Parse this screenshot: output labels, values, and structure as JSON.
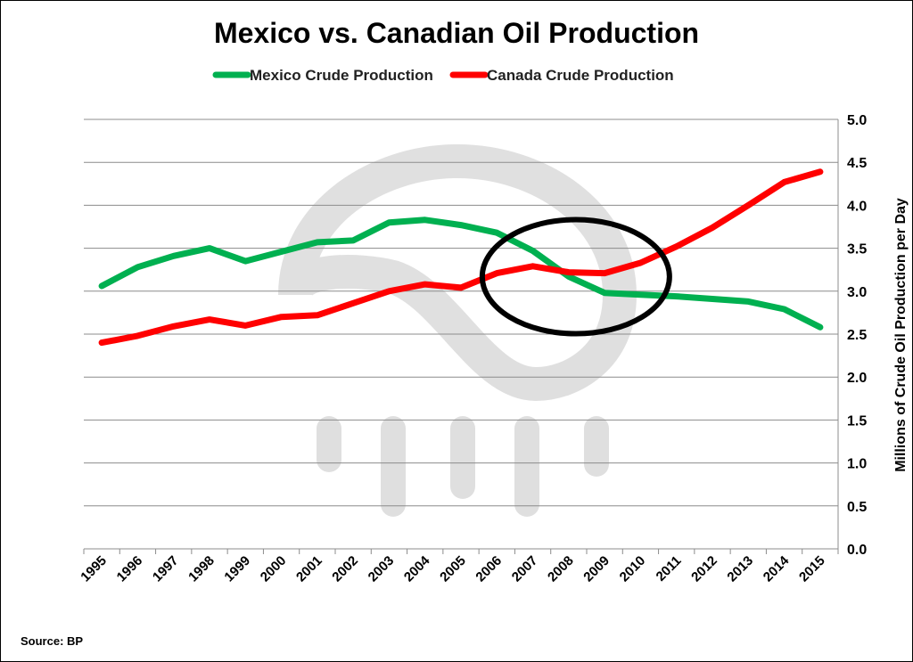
{
  "chart_data": {
    "type": "line",
    "title": "Mexico vs. Canadian Oil Production",
    "ylabel": "Millions of Crude Oil Production per Day",
    "xlabel": "",
    "ylim": [
      0,
      5
    ],
    "y_ticks": [
      "0.0",
      "0.5",
      "1.0",
      "1.5",
      "2.0",
      "2.5",
      "3.0",
      "3.5",
      "4.0",
      "4.5",
      "5.0"
    ],
    "y_axis_side": "right",
    "grid": true,
    "legend_position": "top",
    "x": [
      "1995",
      "1996",
      "1997",
      "1998",
      "1999",
      "2000",
      "2001",
      "2002",
      "2003",
      "2004",
      "2005",
      "2006",
      "2007",
      "2008",
      "2009",
      "2010",
      "2011",
      "2012",
      "2013",
      "2014",
      "2015"
    ],
    "series": [
      {
        "name": "Mexico Crude Production",
        "color": "#00b050",
        "values": [
          3.06,
          3.28,
          3.41,
          3.5,
          3.35,
          3.46,
          3.57,
          3.59,
          3.8,
          3.83,
          3.77,
          3.68,
          3.47,
          3.17,
          2.98,
          2.96,
          2.94,
          2.91,
          2.88,
          2.79,
          2.58
        ]
      },
      {
        "name": "Canada Crude Production",
        "color": "#ff0000",
        "values": [
          2.4,
          2.48,
          2.59,
          2.67,
          2.6,
          2.7,
          2.72,
          2.86,
          3.0,
          3.08,
          3.04,
          3.21,
          3.29,
          3.22,
          3.21,
          3.33,
          3.52,
          3.74,
          4.0,
          4.27,
          4.39
        ]
      }
    ],
    "annotations": [
      {
        "type": "ellipse",
        "center_x": "2008",
        "center_y": 3.2,
        "color": "#000000"
      }
    ],
    "source": "Source: BP"
  }
}
